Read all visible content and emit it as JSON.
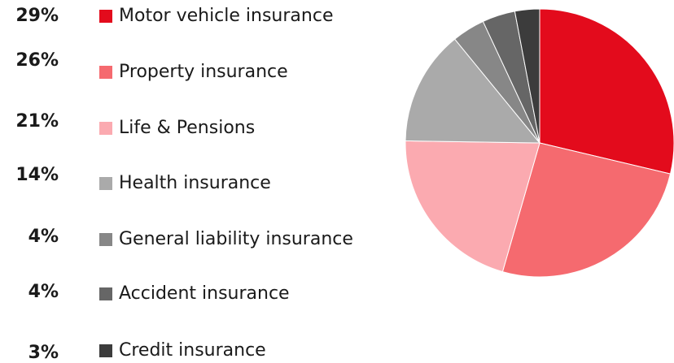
{
  "chart_data": {
    "type": "pie",
    "categories": [
      "Motor vehicle insurance",
      "Property insurance",
      "Life & Pensions",
      "Health insurance",
      "General liability insurance",
      "Accident insurance",
      "Credit insurance"
    ],
    "values": [
      29,
      26,
      21,
      14,
      4,
      4,
      3
    ],
    "value_labels": [
      "29%",
      "26%",
      "21%",
      "14%",
      "4%",
      "4%",
      "3%"
    ],
    "colors": [
      "#e30b1c",
      "#f56a6f",
      "#fbaab0",
      "#aaaaaa",
      "#878787",
      "#666666",
      "#3c3c3c"
    ]
  }
}
